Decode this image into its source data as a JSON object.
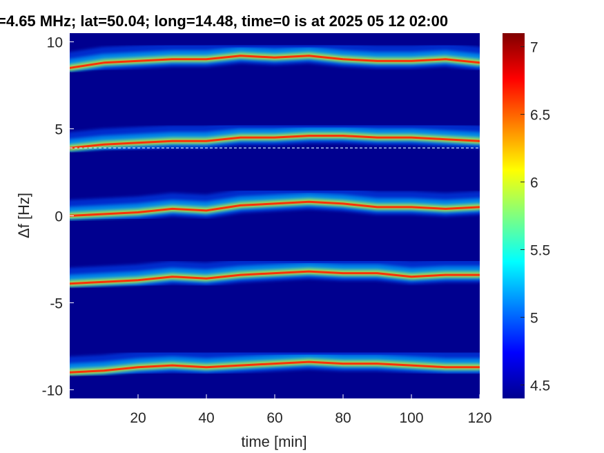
{
  "chart_data": {
    "type": "heatmap",
    "title": "=4.65 MHz;  lat=50.04; long=14.48, time=0 is at 2025 05 12 02:00",
    "xlabel": "time [min]",
    "ylabel": "Δf [Hz]",
    "xlim": [
      0,
      120
    ],
    "ylim": [
      -10.5,
      10.5
    ],
    "x_ticks": [
      20,
      40,
      60,
      80,
      100,
      120
    ],
    "y_ticks": [
      10,
      5,
      0,
      -5,
      -10
    ],
    "colorbar": {
      "range": [
        4.4,
        7.1
      ],
      "ticks": [
        7,
        6.5,
        6,
        5.5,
        5,
        4.5
      ],
      "colormap": "jet"
    },
    "background_color": "#00008f",
    "traces": [
      {
        "name": "",
        "points": [
          [
            0,
            8.5
          ],
          [
            10,
            8.8
          ],
          [
            20,
            8.9
          ],
          [
            30,
            9.0
          ],
          [
            40,
            9.0
          ],
          [
            50,
            9.2
          ],
          [
            60,
            9.1
          ],
          [
            70,
            9.2
          ],
          [
            80,
            9.0
          ],
          [
            90,
            8.9
          ],
          [
            100,
            8.9
          ],
          [
            110,
            9.0
          ],
          [
            120,
            8.8
          ]
        ]
      },
      {
        "name": "",
        "points": [
          [
            0,
            3.9
          ],
          [
            10,
            4.1
          ],
          [
            20,
            4.2
          ],
          [
            30,
            4.3
          ],
          [
            40,
            4.3
          ],
          [
            50,
            4.5
          ],
          [
            60,
            4.5
          ],
          [
            70,
            4.6
          ],
          [
            80,
            4.6
          ],
          [
            90,
            4.5
          ],
          [
            100,
            4.5
          ],
          [
            110,
            4.4
          ],
          [
            120,
            4.3
          ]
        ]
      },
      {
        "name": "",
        "points": [
          [
            0,
            0.0
          ],
          [
            10,
            0.1
          ],
          [
            20,
            0.2
          ],
          [
            30,
            0.4
          ],
          [
            40,
            0.3
          ],
          [
            50,
            0.6
          ],
          [
            60,
            0.7
          ],
          [
            70,
            0.8
          ],
          [
            80,
            0.7
          ],
          [
            90,
            0.5
          ],
          [
            100,
            0.5
          ],
          [
            110,
            0.4
          ],
          [
            120,
            0.5
          ]
        ]
      },
      {
        "name": "",
        "points": [
          [
            0,
            -3.9
          ],
          [
            10,
            -3.8
          ],
          [
            20,
            -3.7
          ],
          [
            30,
            -3.5
          ],
          [
            40,
            -3.6
          ],
          [
            50,
            -3.4
          ],
          [
            60,
            -3.3
          ],
          [
            70,
            -3.2
          ],
          [
            80,
            -3.3
          ],
          [
            90,
            -3.3
          ],
          [
            100,
            -3.5
          ],
          [
            110,
            -3.4
          ],
          [
            120,
            -3.4
          ]
        ]
      },
      {
        "name": "",
        "points": [
          [
            0,
            -9.0
          ],
          [
            10,
            -8.9
          ],
          [
            20,
            -8.7
          ],
          [
            30,
            -8.6
          ],
          [
            40,
            -8.7
          ],
          [
            50,
            -8.6
          ],
          [
            60,
            -8.5
          ],
          [
            70,
            -8.4
          ],
          [
            80,
            -8.5
          ],
          [
            90,
            -8.5
          ],
          [
            100,
            -8.6
          ],
          [
            110,
            -8.7
          ],
          [
            120,
            -8.7
          ]
        ]
      }
    ],
    "reference_line": {
      "y": 3.9,
      "style": "dashed"
    }
  }
}
